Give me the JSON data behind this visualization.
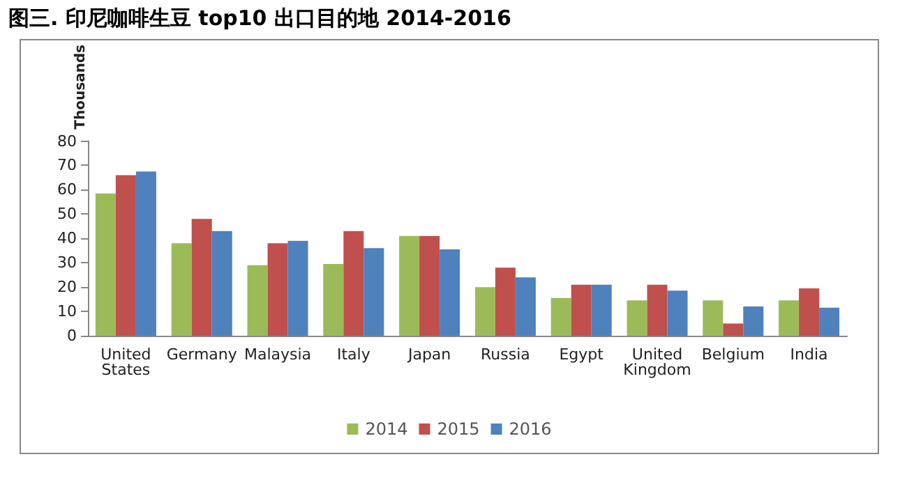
{
  "chart_data": {
    "type": "bar",
    "title": "图三. 印尼咖啡生豆 top10 出口目的地 2014-2016",
    "ylabel": "Thousands",
    "categories": [
      "United\nStates",
      "Germany",
      "Malaysia",
      "Italy",
      "Japan",
      "Russia",
      "Egypt",
      "United\nKingdom",
      "Belgium",
      "India"
    ],
    "series": [
      {
        "name": "2014",
        "color": "#9bbb59",
        "values": [
          58.5,
          38,
          29,
          29.5,
          41,
          20,
          15.5,
          14.5,
          14.5,
          14.5
        ]
      },
      {
        "name": "2015",
        "color": "#c0504d",
        "values": [
          66,
          48,
          38,
          43,
          41,
          28,
          21,
          21,
          5,
          19.5
        ]
      },
      {
        "name": "2016",
        "color": "#4f81bd",
        "values": [
          67.5,
          43,
          39,
          36,
          35.5,
          24,
          21,
          18.5,
          12,
          11.5
        ]
      }
    ],
    "ylim": [
      0,
      80
    ],
    "yticks": [
      0,
      10,
      20,
      30,
      40,
      50,
      60,
      70,
      80
    ],
    "grid": false,
    "legend": "bottom"
  }
}
